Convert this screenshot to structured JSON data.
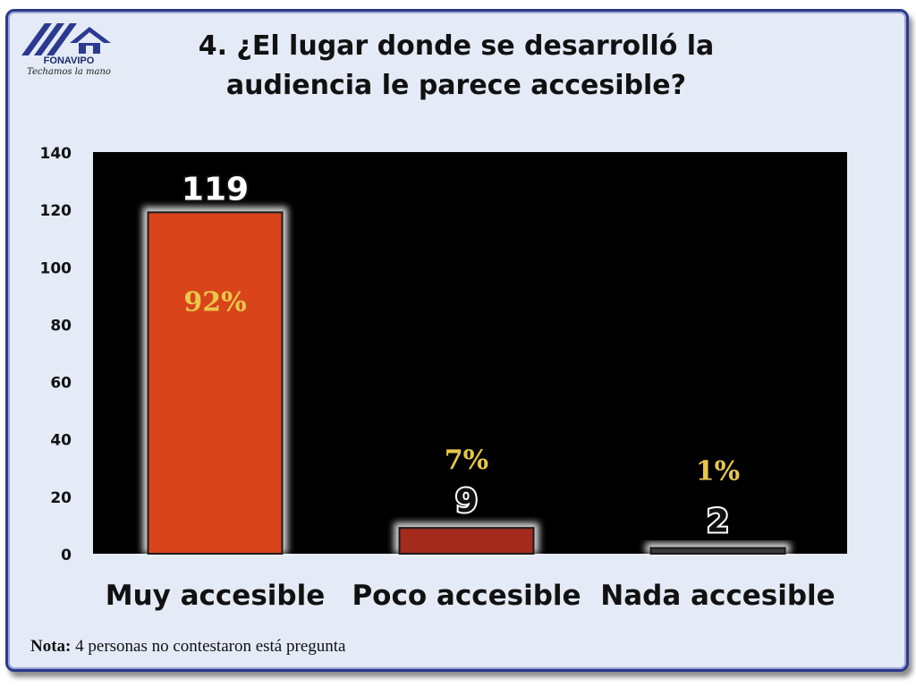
{
  "logo": {
    "name": "FONAVIPO",
    "tagline": "Techamos la mano"
  },
  "title": "4. ¿El lugar donde se desarrolló la audiencia le parece accesible?",
  "chart_data": {
    "type": "bar",
    "title": "4. ¿El lugar donde se desarrolló la audiencia le parece accesible?",
    "categories": [
      "Muy accesible",
      "Poco accesible",
      "Nada accesible"
    ],
    "values": [
      119,
      9,
      2
    ],
    "value_labels": [
      "119",
      "9",
      "2"
    ],
    "percent_labels": [
      "92%",
      "7%",
      "1%"
    ],
    "bar_colors": [
      "#d9441a",
      "#a32a1c",
      "#3a3a3a"
    ],
    "ylim": [
      0,
      140
    ],
    "yticks": [
      0,
      20,
      40,
      60,
      80,
      100,
      120,
      140
    ],
    "xlabel": "",
    "ylabel": "",
    "grid": false,
    "plot_background": "#000000",
    "percent_color": "#e8c84a"
  },
  "note": {
    "label": "Nota:",
    "text": " 4 personas no contestaron está pregunta"
  }
}
